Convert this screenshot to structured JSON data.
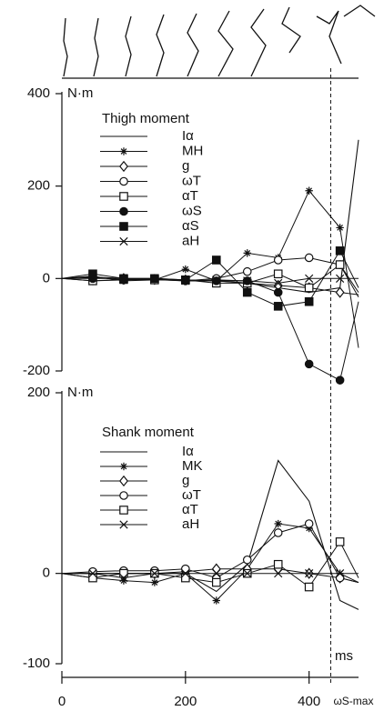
{
  "chart_data": [
    {
      "type": "line",
      "title": "Thigh moment",
      "ylabel": "N·m",
      "x": [
        0,
        50,
        100,
        150,
        200,
        250,
        300,
        350,
        400,
        450,
        480
      ],
      "xlim": [
        0,
        480
      ],
      "ylim": [
        -200,
        400
      ],
      "yticks": [
        -200,
        0,
        200,
        400
      ],
      "series": [
        {
          "name": "Iα",
          "marker": "none",
          "color": "#111",
          "values": [
            0,
            2,
            0,
            -2,
            -5,
            -5,
            -10,
            -20,
            -30,
            -20,
            300
          ]
        },
        {
          "name": "MH",
          "marker": "star",
          "color": "#111",
          "values": [
            0,
            5,
            -5,
            -3,
            20,
            -5,
            55,
            45,
            190,
            110,
            -150
          ]
        },
        {
          "name": "g",
          "marker": "diamond",
          "color": "#111",
          "values": [
            0,
            3,
            0,
            -2,
            -3,
            -5,
            -10,
            -15,
            -20,
            -30,
            -35
          ]
        },
        {
          "name": "ωT",
          "marker": "circle-open",
          "color": "#111",
          "values": [
            0,
            -5,
            -3,
            -2,
            -5,
            0,
            15,
            40,
            45,
            30,
            -30
          ]
        },
        {
          "name": "αT",
          "marker": "square-open",
          "color": "#111",
          "values": [
            0,
            -5,
            -2,
            -3,
            -3,
            -10,
            -10,
            10,
            -20,
            30,
            -40
          ]
        },
        {
          "name": "ωS",
          "marker": "circle-filled",
          "color": "#111",
          "values": [
            0,
            0,
            0,
            0,
            -3,
            -5,
            -5,
            -30,
            -185,
            -220,
            -50
          ]
        },
        {
          "name": "αS",
          "marker": "square-filled",
          "color": "#111",
          "values": [
            0,
            10,
            0,
            0,
            -3,
            40,
            -30,
            -60,
            -50,
            60,
            -20
          ]
        },
        {
          "name": "aH",
          "marker": "cross",
          "color": "#111",
          "values": [
            0,
            3,
            -3,
            0,
            -5,
            -3,
            -5,
            -10,
            0,
            0,
            0
          ]
        }
      ],
      "vline": {
        "value": 435,
        "label": "ωS-max"
      }
    },
    {
      "type": "line",
      "title": "Shank moment",
      "ylabel": "N·m",
      "xlabel": "ms",
      "x": [
        0,
        50,
        100,
        150,
        200,
        250,
        300,
        350,
        400,
        450,
        480
      ],
      "xlim": [
        0,
        480
      ],
      "xticks": [
        0,
        200,
        400
      ],
      "ylim": [
        -100,
        200
      ],
      "yticks": [
        -100,
        0,
        200
      ],
      "series": [
        {
          "name": "Iα",
          "marker": "none",
          "color": "#111",
          "values": [
            0,
            0,
            0,
            0,
            0,
            -20,
            10,
            125,
            80,
            -30,
            -40
          ]
        },
        {
          "name": "MK",
          "marker": "star",
          "color": "#111",
          "values": [
            0,
            -5,
            -8,
            -10,
            0,
            -30,
            5,
            55,
            50,
            0,
            -10
          ]
        },
        {
          "name": "g",
          "marker": "diamond",
          "color": "#111",
          "values": [
            0,
            0,
            0,
            0,
            2,
            5,
            5,
            5,
            0,
            -5,
            -10
          ]
        },
        {
          "name": "ωT",
          "marker": "circle-open",
          "color": "#111",
          "values": [
            0,
            2,
            3,
            3,
            5,
            -5,
            15,
            45,
            55,
            -5,
            -10
          ]
        },
        {
          "name": "αT",
          "marker": "square-open",
          "color": "#111",
          "values": [
            0,
            -5,
            0,
            0,
            -5,
            -10,
            0,
            10,
            -15,
            35,
            -5
          ]
        },
        {
          "name": "aH",
          "marker": "cross",
          "color": "#111",
          "values": [
            0,
            0,
            -5,
            0,
            0,
            0,
            0,
            0,
            0,
            0,
            0
          ]
        }
      ]
    }
  ]
}
